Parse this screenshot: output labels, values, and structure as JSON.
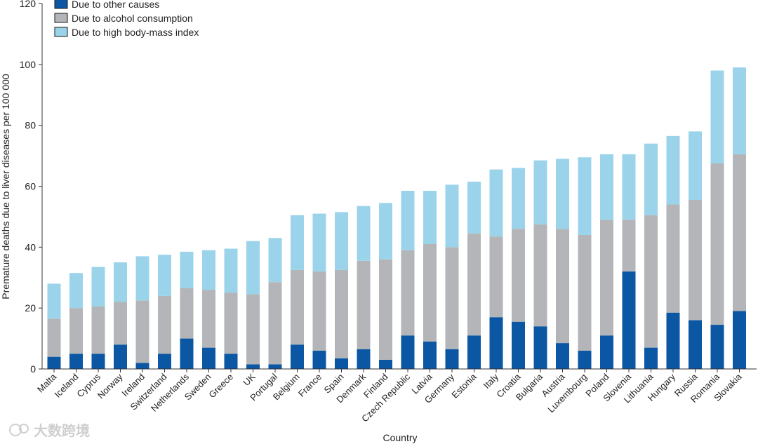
{
  "chart_data": {
    "type": "bar",
    "stacked": true,
    "title": "",
    "xlabel": "Country",
    "ylabel": "Premature deaths due to liver diseases per 100 000",
    "ylim": [
      0,
      120
    ],
    "yticks": [
      0,
      20,
      40,
      60,
      80,
      100,
      120
    ],
    "grid": false,
    "legend_position": "top-left",
    "categories": [
      "Malta",
      "Iceland",
      "Cyprus",
      "Norway",
      "Ireland",
      "Switzerland",
      "Netherlands",
      "Sweden",
      "Greece",
      "UK",
      "Portugal",
      "Belgium",
      "France",
      "Spain",
      "Denmark",
      "Finland",
      "Czech Republic",
      "Latvia",
      "Germany",
      "Estonia",
      "Italy",
      "Croatia",
      "Bulgaria",
      "Austria",
      "Luxembourg",
      "Poland",
      "Slovenia",
      "Lithuania",
      "Hungary",
      "Russia",
      "Romania",
      "Slovakia"
    ],
    "series": [
      {
        "name": "Due to other causes",
        "color": "#0b57a4",
        "values": [
          4,
          5,
          5,
          8,
          2,
          5,
          10,
          7,
          5,
          1.5,
          1.5,
          8,
          6,
          3.5,
          6.5,
          3,
          11,
          9,
          6.5,
          11,
          17,
          15.5,
          14,
          8.5,
          6,
          11,
          32,
          7,
          18.5,
          16,
          14.5,
          19
        ]
      },
      {
        "name": "Due to alcohol consumption",
        "color": "#b3b5b8",
        "values": [
          12.5,
          15,
          15.5,
          14,
          20.5,
          19,
          16.5,
          19,
          20,
          23,
          27,
          24.5,
          26,
          29,
          29,
          33,
          28,
          32,
          33.5,
          33.5,
          26.5,
          30.5,
          33.5,
          37.5,
          38,
          38,
          17,
          43.5,
          35.5,
          39.5,
          53,
          51.5
        ]
      },
      {
        "name": "Due to high body-mass index",
        "color": "#9bd4ea",
        "values": [
          11.5,
          11.5,
          13,
          13,
          14.5,
          13.5,
          12,
          13,
          14.5,
          17.5,
          14.5,
          18,
          19,
          19,
          18,
          18.5,
          19.5,
          17.5,
          20.5,
          17,
          22,
          20,
          21,
          23,
          25.5,
          21.5,
          21.5,
          23.5,
          22.5,
          22.5,
          30.5,
          28.5
        ]
      }
    ]
  },
  "watermark": {
    "text": "大数跨境"
  }
}
